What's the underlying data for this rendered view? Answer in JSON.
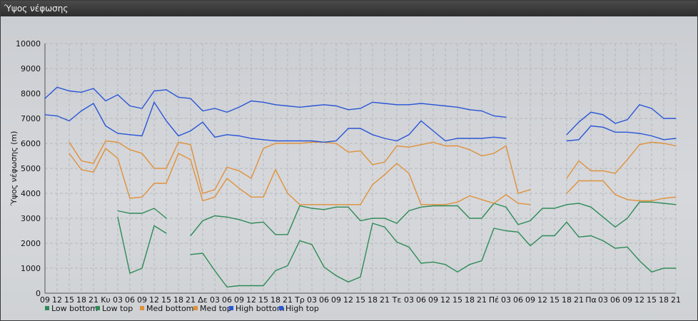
{
  "window": {
    "title": "Ύψος νέφωσης"
  },
  "chart_data": {
    "type": "line",
    "ylabel": "Ύψος νέφωσης (m)",
    "ylim": [
      0,
      10000
    ],
    "yticks": [
      0,
      1000,
      2000,
      3000,
      4000,
      5000,
      6000,
      7000,
      8000,
      9000,
      10000
    ],
    "grid": true,
    "legend_position": "bottom-left",
    "x_labels": [
      "09",
      "12",
      "15",
      "18",
      "21",
      "Κυ",
      "03",
      "06",
      "09",
      "12",
      "15",
      "18",
      "21",
      "Δε",
      "03",
      "06",
      "09",
      "12",
      "15",
      "18",
      "21",
      "Τρ",
      "03",
      "06",
      "09",
      "12",
      "15",
      "18",
      "21",
      "Τε",
      "03",
      "06",
      "09",
      "12",
      "15",
      "18",
      "21",
      "Πέ",
      "03",
      "06",
      "09",
      "12",
      "15",
      "18",
      "21",
      "Πα",
      "03",
      "06",
      "09",
      "12",
      "15",
      "18",
      "21"
    ],
    "series": [
      {
        "name": "Low bottom",
        "color": "#2e8b57",
        "values": [
          null,
          null,
          null,
          null,
          null,
          null,
          3050,
          800,
          1000,
          2700,
          2400,
          null,
          1550,
          1600,
          900,
          250,
          300,
          300,
          300,
          900,
          1100,
          2100,
          1950,
          1050,
          700,
          450,
          650,
          2800,
          2650,
          2050,
          1850,
          1200,
          1250,
          1150,
          850,
          1150,
          1300,
          2600,
          2500,
          2450,
          1900,
          2300,
          2300,
          2850,
          2250,
          2300,
          2100,
          1800,
          1850,
          1300,
          850,
          1000,
          1000
        ]
      },
      {
        "name": "Low top",
        "color": "#2e8b57",
        "values": [
          null,
          null,
          null,
          null,
          null,
          null,
          3300,
          3200,
          3200,
          3400,
          3000,
          null,
          2300,
          2900,
          3100,
          3050,
          2950,
          2800,
          2850,
          2350,
          2350,
          3500,
          3400,
          3350,
          3450,
          3450,
          2900,
          3000,
          3000,
          2800,
          3300,
          3450,
          3500,
          3500,
          3500,
          3000,
          3000,
          3600,
          3450,
          2750,
          2900,
          3400,
          3400,
          3550,
          3600,
          3450,
          3050,
          2650,
          3000,
          3650,
          3650,
          3600,
          3550
        ]
      },
      {
        "name": "Med bottom",
        "color": "#e0913a",
        "values": [
          null,
          null,
          5600,
          4950,
          4850,
          5800,
          5400,
          3800,
          3850,
          4400,
          4400,
          5600,
          5350,
          3700,
          3850,
          4600,
          4200,
          3850,
          3850,
          4950,
          4000,
          3550,
          3550,
          3550,
          3550,
          3550,
          3550,
          4350,
          4750,
          5200,
          4800,
          3550,
          3550,
          3550,
          3650,
          3900,
          3750,
          3600,
          3950,
          3600,
          3550,
          null,
          null,
          4000,
          4500,
          4500,
          4500,
          3950,
          3750,
          3700,
          3700,
          3800,
          3850
        ]
      },
      {
        "name": "Med top",
        "color": "#e0913a",
        "values": [
          null,
          null,
          6050,
          5300,
          5200,
          6100,
          6050,
          5750,
          5600,
          5000,
          5000,
          6050,
          5950,
          4000,
          4150,
          5050,
          4900,
          4600,
          5800,
          6000,
          6000,
          6000,
          6050,
          6050,
          6000,
          5650,
          5700,
          5150,
          5250,
          5900,
          5850,
          5950,
          6050,
          5900,
          5900,
          5750,
          5500,
          5600,
          5900,
          4000,
          4150,
          null,
          null,
          4600,
          5300,
          4900,
          4900,
          4800,
          5350,
          5950,
          6050,
          6000,
          5900
        ]
      },
      {
        "name": "High bottom",
        "color": "#2a55d6",
        "values": [
          7150,
          7100,
          6900,
          7300,
          7600,
          6700,
          6400,
          6350,
          6300,
          7650,
          6900,
          6300,
          6500,
          6850,
          6250,
          6350,
          6300,
          6200,
          6150,
          6100,
          6100,
          6100,
          6100,
          6050,
          6100,
          6600,
          6600,
          6350,
          6200,
          6100,
          6350,
          6900,
          6500,
          6100,
          6200,
          6200,
          6200,
          6250,
          6200,
          null,
          null,
          null,
          null,
          6100,
          6150,
          6700,
          6650,
          6450,
          6450,
          6400,
          6300,
          6150,
          6200
        ]
      },
      {
        "name": "High top",
        "color": "#2a55d6",
        "values": [
          7800,
          8250,
          8100,
          8050,
          8200,
          7700,
          7950,
          7500,
          7400,
          8100,
          8150,
          7850,
          7800,
          7300,
          7400,
          7250,
          7450,
          7700,
          7650,
          7550,
          7500,
          7450,
          7500,
          7550,
          7500,
          7350,
          7400,
          7650,
          7600,
          7550,
          7550,
          7600,
          7550,
          7500,
          7450,
          7350,
          7300,
          7100,
          7050,
          null,
          null,
          null,
          null,
          6350,
          6850,
          7250,
          7150,
          6800,
          6950,
          7550,
          7400,
          7000,
          7000
        ]
      }
    ]
  },
  "legend": [
    {
      "label": "Low bottom",
      "color": "#2e8b57"
    },
    {
      "label": "Low top",
      "color": "#2e8b57"
    },
    {
      "label": "Med bottom",
      "color": "#e0913a"
    },
    {
      "label": "Med top",
      "color": "#e0913a"
    },
    {
      "label": "High bottom",
      "color": "#2a55d6"
    },
    {
      "label": "High top",
      "color": "#2a55d6"
    }
  ]
}
